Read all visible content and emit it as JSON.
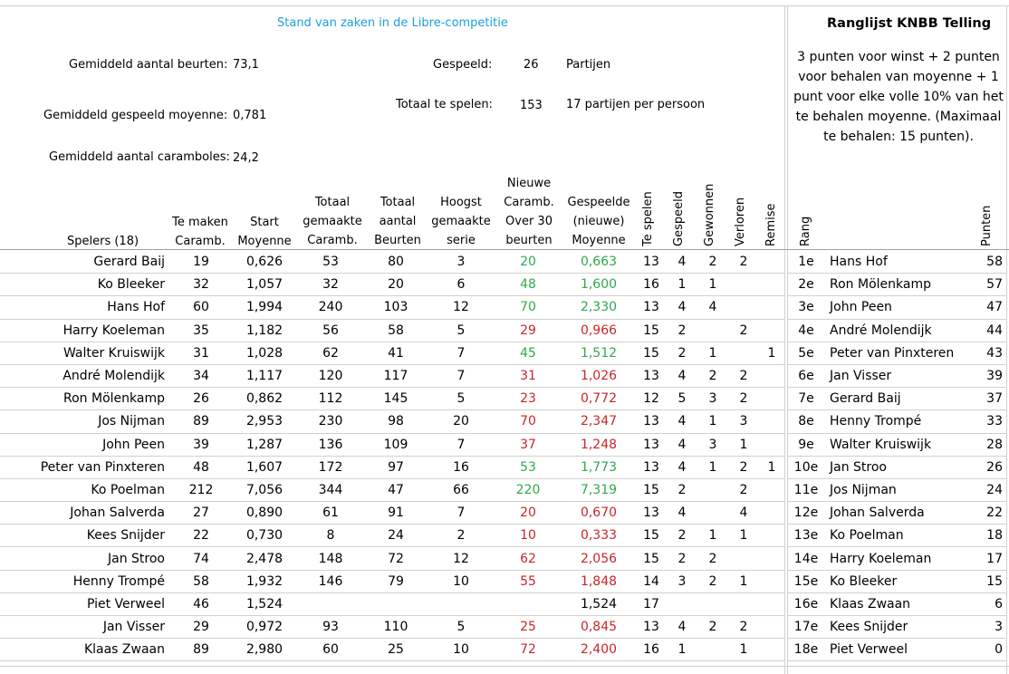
{
  "title": "Stand van zaken in de Libre-competitie",
  "info": {
    "avg_turns_label": "Gemiddeld aantal beurten:",
    "avg_turns_value": "73,1",
    "avg_moyenne_label": "Gemiddeld gespeeld moyenne:",
    "avg_moyenne_value": "0,781",
    "avg_caramboles_label": "Gemiddeld aantal caramboles:",
    "avg_caramboles_value": "24,2",
    "played_label": "Gespeeld:",
    "played_value": "26",
    "played_unit": "Partijen",
    "total_label": "Totaal te spelen:",
    "total_value": "153",
    "total_unit": "17 partijen per persoon"
  },
  "ranking": {
    "title": "Ranglijst KNBB Telling",
    "description": "3 punten voor winst + 2 punten voor behalen van moyenne + 1 punt voor elke volle 10% van het te behalen moyenne. (Maximaal te behalen: 15 punten).",
    "col_rank": "Rang",
    "col_points": "Punten",
    "rows": [
      {
        "rank": "1e",
        "name": "Hans Hof",
        "points": "58"
      },
      {
        "rank": "2e",
        "name": "Ron Mölenkamp",
        "points": "57"
      },
      {
        "rank": "3e",
        "name": "John Peen",
        "points": "47"
      },
      {
        "rank": "4e",
        "name": "André Molendijk",
        "points": "44"
      },
      {
        "rank": "5e",
        "name": "Peter van Pinxteren",
        "points": "43"
      },
      {
        "rank": "6e",
        "name": "Jan Visser",
        "points": "39"
      },
      {
        "rank": "7e",
        "name": "Gerard Baij",
        "points": "37"
      },
      {
        "rank": "8e",
        "name": "Henny Trompé",
        "points": "33"
      },
      {
        "rank": "9e",
        "name": "Walter Kruiswijk",
        "points": "28"
      },
      {
        "rank": "10e",
        "name": "Jan Stroo",
        "points": "26"
      },
      {
        "rank": "11e",
        "name": "Jos Nijman",
        "points": "24"
      },
      {
        "rank": "12e",
        "name": "Johan Salverda",
        "points": "22"
      },
      {
        "rank": "13e",
        "name": "Ko Poelman",
        "points": "18"
      },
      {
        "rank": "14e",
        "name": "Harry Koeleman",
        "points": "17"
      },
      {
        "rank": "15e",
        "name": "Ko Bleeker",
        "points": "15"
      },
      {
        "rank": "16e",
        "name": "Klaas Zwaan",
        "points": "6"
      },
      {
        "rank": "17e",
        "name": "Kees Snijder",
        "points": "3"
      },
      {
        "rank": "18e",
        "name": "Piet Verweel",
        "points": "0"
      }
    ]
  },
  "headers": {
    "players": "Spelers (18)",
    "to_make_1": "Te maken",
    "to_make_2": "Caramb.",
    "start_1": "Start",
    "start_2": "Moyenne",
    "total_car_1": "Totaal",
    "total_car_2": "gemaakte",
    "total_car_3": "Caramb.",
    "total_turns_1": "Totaal",
    "total_turns_2": "aantal",
    "total_turns_3": "Beurten",
    "highest_1": "Hoogst",
    "highest_2": "gemaakte",
    "highest_3": "serie",
    "new_1": "Nieuwe",
    "new_2": "Caramb.",
    "new_3": "Over 30",
    "new_4": "beurten",
    "played_moy_1": "Gespeelde",
    "played_moy_2": "(nieuwe)",
    "played_moy_3": "Moyenne",
    "to_play": "Te spelen",
    "played": "Gespeeld",
    "won": "Gewonnen",
    "lost": "Verloren",
    "draw": "Remise"
  },
  "colors": {
    "above": "#2ea94b",
    "below": "#c8262a",
    "title": "#1aa0dc"
  },
  "players": [
    {
      "name": "Gerard Baij",
      "to_make": "19",
      "start": "0,626",
      "total_car": "53",
      "turns": "80",
      "highest": "3",
      "new_car": "20",
      "moy": "0,663",
      "status": "above",
      "to_play": "13",
      "played": "4",
      "won": "2",
      "lost": "2",
      "draw": ""
    },
    {
      "name": "Ko Bleeker",
      "to_make": "32",
      "start": "1,057",
      "total_car": "32",
      "turns": "20",
      "highest": "6",
      "new_car": "48",
      "moy": "1,600",
      "status": "above",
      "to_play": "16",
      "played": "1",
      "won": "1",
      "lost": "",
      "draw": ""
    },
    {
      "name": "Hans Hof",
      "to_make": "60",
      "start": "1,994",
      "total_car": "240",
      "turns": "103",
      "highest": "12",
      "new_car": "70",
      "moy": "2,330",
      "status": "above",
      "to_play": "13",
      "played": "4",
      "won": "4",
      "lost": "",
      "draw": ""
    },
    {
      "name": "Harry Koeleman",
      "to_make": "35",
      "start": "1,182",
      "total_car": "56",
      "turns": "58",
      "highest": "5",
      "new_car": "29",
      "moy": "0,966",
      "status": "below",
      "to_play": "15",
      "played": "2",
      "won": "",
      "lost": "2",
      "draw": ""
    },
    {
      "name": "Walter Kruiswijk",
      "to_make": "31",
      "start": "1,028",
      "total_car": "62",
      "turns": "41",
      "highest": "7",
      "new_car": "45",
      "moy": "1,512",
      "status": "above",
      "to_play": "15",
      "played": "2",
      "won": "1",
      "lost": "",
      "draw": "1"
    },
    {
      "name": "André Molendijk",
      "to_make": "34",
      "start": "1,117",
      "total_car": "120",
      "turns": "117",
      "highest": "7",
      "new_car": "31",
      "moy": "1,026",
      "status": "below",
      "to_play": "13",
      "played": "4",
      "won": "2",
      "lost": "2",
      "draw": ""
    },
    {
      "name": "Ron Mölenkamp",
      "to_make": "26",
      "start": "0,862",
      "total_car": "112",
      "turns": "145",
      "highest": "5",
      "new_car": "23",
      "moy": "0,772",
      "status": "below",
      "to_play": "12",
      "played": "5",
      "won": "3",
      "lost": "2",
      "draw": ""
    },
    {
      "name": "Jos Nijman",
      "to_make": "89",
      "start": "2,953",
      "total_car": "230",
      "turns": "98",
      "highest": "20",
      "new_car": "70",
      "moy": "2,347",
      "status": "below",
      "to_play": "13",
      "played": "4",
      "won": "1",
      "lost": "3",
      "draw": ""
    },
    {
      "name": "John Peen",
      "to_make": "39",
      "start": "1,287",
      "total_car": "136",
      "turns": "109",
      "highest": "7",
      "new_car": "37",
      "moy": "1,248",
      "status": "below",
      "to_play": "13",
      "played": "4",
      "won": "3",
      "lost": "1",
      "draw": ""
    },
    {
      "name": "Peter van Pinxteren",
      "to_make": "48",
      "start": "1,607",
      "total_car": "172",
      "turns": "97",
      "highest": "16",
      "new_car": "53",
      "moy": "1,773",
      "status": "above",
      "to_play": "13",
      "played": "4",
      "won": "1",
      "lost": "2",
      "draw": "1"
    },
    {
      "name": "Ko Poelman",
      "to_make": "212",
      "start": "7,056",
      "total_car": "344",
      "turns": "47",
      "highest": "66",
      "new_car": "220",
      "moy": "7,319",
      "status": "above",
      "to_play": "15",
      "played": "2",
      "won": "",
      "lost": "2",
      "draw": ""
    },
    {
      "name": "Johan Salverda",
      "to_make": "27",
      "start": "0,890",
      "total_car": "61",
      "turns": "91",
      "highest": "7",
      "new_car": "20",
      "moy": "0,670",
      "status": "below",
      "to_play": "13",
      "played": "4",
      "won": "",
      "lost": "4",
      "draw": ""
    },
    {
      "name": "Kees Snijder",
      "to_make": "22",
      "start": "0,730",
      "total_car": "8",
      "turns": "24",
      "highest": "2",
      "new_car": "10",
      "moy": "0,333",
      "status": "below",
      "to_play": "15",
      "played": "2",
      "won": "1",
      "lost": "1",
      "draw": ""
    },
    {
      "name": "Jan Stroo",
      "to_make": "74",
      "start": "2,478",
      "total_car": "148",
      "turns": "72",
      "highest": "12",
      "new_car": "62",
      "moy": "2,056",
      "status": "below",
      "to_play": "15",
      "played": "2",
      "won": "2",
      "lost": "",
      "draw": ""
    },
    {
      "name": "Henny Trompé",
      "to_make": "58",
      "start": "1,932",
      "total_car": "146",
      "turns": "79",
      "highest": "10",
      "new_car": "55",
      "moy": "1,848",
      "status": "below",
      "to_play": "14",
      "played": "3",
      "won": "2",
      "lost": "1",
      "draw": ""
    },
    {
      "name": "Piet Verweel",
      "to_make": "46",
      "start": "1,524",
      "total_car": "",
      "turns": "",
      "highest": "",
      "new_car": "",
      "moy": "1,524",
      "status": "none",
      "to_play": "17",
      "played": "",
      "won": "",
      "lost": "",
      "draw": ""
    },
    {
      "name": "Jan Visser",
      "to_make": "29",
      "start": "0,972",
      "total_car": "93",
      "turns": "110",
      "highest": "5",
      "new_car": "25",
      "moy": "0,845",
      "status": "below",
      "to_play": "13",
      "played": "4",
      "won": "2",
      "lost": "2",
      "draw": ""
    },
    {
      "name": "Klaas Zwaan",
      "to_make": "89",
      "start": "2,980",
      "total_car": "60",
      "turns": "25",
      "highest": "10",
      "new_car": "72",
      "moy": "2,400",
      "status": "below",
      "to_play": "16",
      "played": "1",
      "won": "",
      "lost": "1",
      "draw": ""
    }
  ]
}
